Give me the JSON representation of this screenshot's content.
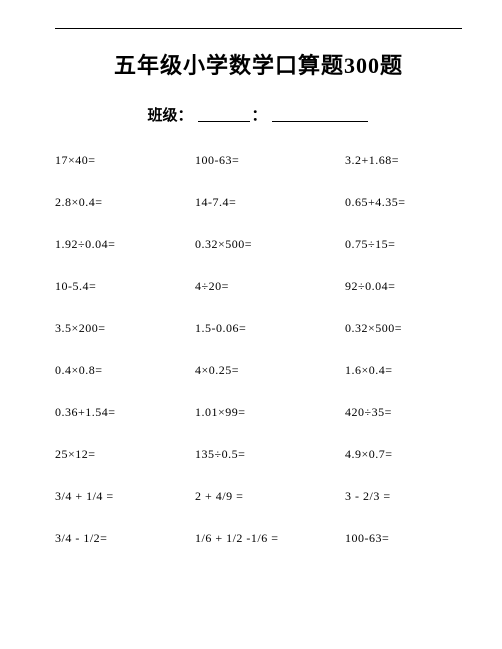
{
  "title": {
    "prefix": "五年级小学数学口算题",
    "number": "300",
    "suffix": "题"
  },
  "subline": {
    "label": "班级",
    "colon": "：",
    "sep": "："
  },
  "rows": [
    {
      "q1": "17×40=",
      "q2": "100-63=",
      "q3": "3.2+1.68="
    },
    {
      "q1": "2.8×0.4=",
      "q2": "14-7.4=",
      "q3": "0.65+4.35="
    },
    {
      "q1": "1.92÷0.04=",
      "q2": "0.32×500=",
      "q3": "0.75÷15="
    },
    {
      "q1": "10-5.4=",
      "q2": "4÷20=",
      "q3": "92÷0.04="
    },
    {
      "q1": "3.5×200=",
      "q2": "1.5-0.06=",
      "q3": "0.32×500="
    },
    {
      "q1": "0.4×0.8=",
      "q2": "4×0.25=",
      "q3": "1.6×0.4="
    },
    {
      "q1": "0.36+1.54=",
      "q2": "1.01×99=",
      "q3": "420÷35="
    },
    {
      "q1": "25×12=",
      "q2": "135÷0.5=",
      "q3": "4.9×0.7="
    },
    {
      "q1": "3/4 + 1/4 =",
      "q2": "2 + 4/9 =",
      "q3": "3 - 2/3 ="
    },
    {
      "q1": "3/4 - 1/2=",
      "q2": "1/6 + 1/2 -1/6 =",
      "q3": "100-63="
    }
  ]
}
